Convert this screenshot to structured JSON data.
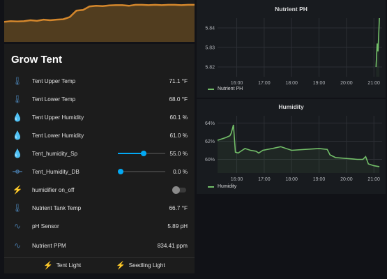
{
  "left": {
    "card_title": "Grow Tent",
    "rows": [
      {
        "icon": "thermometer-icon",
        "label": "Tent Upper Temp",
        "value": "71.1 °F"
      },
      {
        "icon": "thermometer-icon",
        "label": "Tent Lower Temp",
        "value": "68.0 °F"
      },
      {
        "icon": "water-drop-icon",
        "label": "Tent Upper Humidity",
        "value": "60.1 %"
      },
      {
        "icon": "water-drop-icon",
        "label": "Tent Lower Humidity",
        "value": "61.0 %"
      },
      {
        "icon": "water-drop-icon",
        "label": "Tent_humidity_Sp",
        "value": "55.0 %",
        "slider_fraction": 0.55
      },
      {
        "icon": "ray-vertex-icon",
        "label": "Tent_Humidity_DB",
        "value": "0.0 %",
        "slider_fraction": 0.0
      },
      {
        "icon": "flash-icon",
        "label": "humidifier on_off",
        "toggle_state": "off"
      },
      {
        "icon": "thermometer-icon",
        "label": "Nutrient Tank Temp",
        "value": "66.7 °F"
      },
      {
        "icon": "wave-icon",
        "label": "pH Sensor",
        "value": "5.89 pH"
      },
      {
        "icon": "wave-icon",
        "label": "Nutrient PPM",
        "value": "834.41 ppm"
      }
    ],
    "footer": {
      "buttons": [
        {
          "icon": "lightning-icon",
          "label": "Tent Light"
        },
        {
          "icon": "lightning-icon",
          "label": "Seedling Light"
        }
      ]
    }
  },
  "colors": {
    "accent": "#03a9f4",
    "series": "#73bf69",
    "sparkline": "#d4872c",
    "icon": "#44739e",
    "bolt": "#fdd835"
  },
  "chart_data": [
    {
      "type": "area",
      "title": "",
      "series": [
        {
          "values": [
            0.45,
            0.47,
            0.46,
            0.47,
            0.5,
            0.48,
            0.52,
            0.5,
            0.52,
            0.53,
            0.6,
            0.8,
            0.82,
            0.93,
            0.95,
            0.94,
            0.96,
            0.97,
            0.97,
            0.95,
            0.98,
            0.98,
            0.97,
            0.98,
            0.97,
            0.98,
            0.98,
            0.97,
            0.98,
            0.98
          ]
        }
      ]
    },
    {
      "type": "line",
      "title": "Nutrient PH",
      "x_ticks": [
        "16:00",
        "17:00",
        "18:00",
        "19:00",
        "20:00",
        "21:00"
      ],
      "y_ticks": [
        "5.82",
        "5.83",
        "5.84"
      ],
      "ylim": [
        5.815,
        5.845
      ],
      "xlim": [
        15.3,
        21.3
      ],
      "series": [
        {
          "name": "Nutrient PH",
          "points": [
            [
              21.08,
              5.82
            ],
            [
              21.12,
              5.832
            ],
            [
              21.15,
              5.828
            ],
            [
              21.2,
              5.845
            ]
          ]
        }
      ]
    },
    {
      "type": "line",
      "title": "Humidity",
      "x_ticks": [
        "16:00",
        "17:00",
        "18:00",
        "19:00",
        "20:00",
        "21:00"
      ],
      "y_ticks": [
        "60%",
        "62%",
        "64%"
      ],
      "ylim": [
        58.5,
        64.8
      ],
      "xlim": [
        15.3,
        21.3
      ],
      "series": [
        {
          "name": "Humidity",
          "points": [
            [
              15.3,
              62.1
            ],
            [
              15.6,
              62.4
            ],
            [
              15.75,
              62.6
            ],
            [
              15.8,
              62.9
            ],
            [
              15.88,
              63.8
            ],
            [
              15.95,
              60.8
            ],
            [
              16.05,
              60.7
            ],
            [
              16.2,
              61.0
            ],
            [
              16.3,
              61.2
            ],
            [
              16.5,
              61.0
            ],
            [
              16.7,
              60.9
            ],
            [
              16.8,
              60.7
            ],
            [
              16.95,
              61.0
            ],
            [
              17.3,
              61.2
            ],
            [
              17.6,
              61.4
            ],
            [
              18.0,
              61.0
            ],
            [
              18.5,
              61.1
            ],
            [
              19.0,
              61.2
            ],
            [
              19.3,
              61.1
            ],
            [
              19.4,
              60.5
            ],
            [
              19.6,
              60.2
            ],
            [
              20.0,
              60.1
            ],
            [
              20.4,
              60.0
            ],
            [
              20.6,
              60.0
            ],
            [
              20.7,
              60.3
            ],
            [
              20.8,
              59.5
            ],
            [
              21.0,
              59.3
            ],
            [
              21.2,
              59.2
            ]
          ]
        }
      ]
    }
  ]
}
